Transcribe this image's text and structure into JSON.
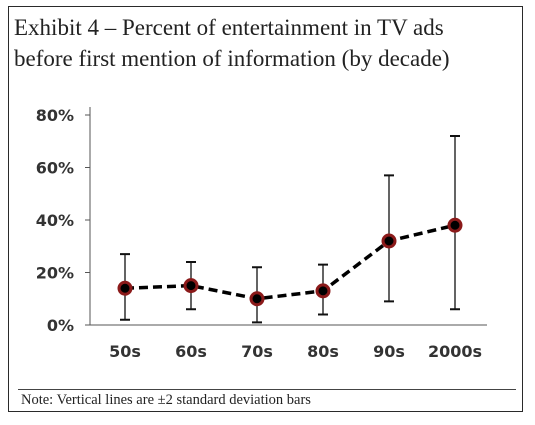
{
  "title_lines": [
    "Exhibit 4 – Percent of entertainment in TV ads",
    "before first mention of information (by decade)"
  ],
  "note": "Note: Vertical lines are ±2 standard deviation bars",
  "chart_data": {
    "type": "line",
    "title": "Exhibit 4 – Percent of entertainment in TV ads before first mention of information (by decade)",
    "xlabel": "",
    "ylabel": "",
    "categories": [
      "50s",
      "60s",
      "70s",
      "80s",
      "90s",
      "2000s"
    ],
    "values": [
      14,
      15,
      10,
      13,
      32,
      38
    ],
    "error_low": [
      2,
      6,
      1,
      4,
      9,
      6
    ],
    "error_high": [
      27,
      24,
      22,
      23,
      57,
      72
    ],
    "ylim": [
      0,
      80
    ],
    "yticks": [
      0,
      20,
      40,
      60,
      80
    ],
    "ytick_labels": [
      "0%",
      "20%",
      "40%",
      "60%",
      "80%"
    ],
    "line_style": "dashed",
    "line_color": "#000000",
    "marker_fill": "#000000",
    "marker_edge": "#8b1a1a",
    "grid": false,
    "legend": "none"
  }
}
